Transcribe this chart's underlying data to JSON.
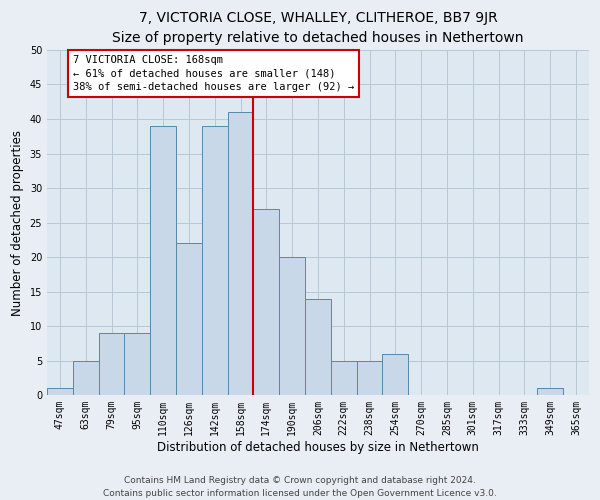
{
  "title": "7, VICTORIA CLOSE, WHALLEY, CLITHEROE, BB7 9JR",
  "subtitle": "Size of property relative to detached houses in Nethertown",
  "xlabel": "Distribution of detached houses by size in Nethertown",
  "ylabel": "Number of detached properties",
  "bar_labels": [
    "47sqm",
    "63sqm",
    "79sqm",
    "95sqm",
    "110sqm",
    "126sqm",
    "142sqm",
    "158sqm",
    "174sqm",
    "190sqm",
    "206sqm",
    "222sqm",
    "238sqm",
    "254sqm",
    "270sqm",
    "285sqm",
    "301sqm",
    "317sqm",
    "333sqm",
    "349sqm",
    "365sqm"
  ],
  "bar_values": [
    1,
    5,
    9,
    9,
    39,
    22,
    39,
    41,
    27,
    20,
    14,
    5,
    5,
    6,
    0,
    0,
    0,
    0,
    0,
    1,
    0
  ],
  "bar_color": "#c8d8e8",
  "bar_edgecolor": "#5588aa",
  "annotation_line1": "7 VICTORIA CLOSE: 168sqm",
  "annotation_line2": "← 61% of detached houses are smaller (148)",
  "annotation_line3": "38% of semi-detached houses are larger (92) →",
  "annotation_box_facecolor": "#ffffff",
  "annotation_box_edgecolor": "#cc0000",
  "vline_color": "#cc0000",
  "vline_x": 7.5,
  "ylim": [
    0,
    50
  ],
  "yticks": [
    0,
    5,
    10,
    15,
    20,
    25,
    30,
    35,
    40,
    45,
    50
  ],
  "grid_color": "#b8c8d8",
  "plot_bg_color": "#dde8f0",
  "fig_bg_color": "#e8eef4",
  "footer_line1": "Contains HM Land Registry data © Crown copyright and database right 2024.",
  "footer_line2": "Contains public sector information licensed under the Open Government Licence v3.0.",
  "title_fontsize": 10,
  "xlabel_fontsize": 8.5,
  "ylabel_fontsize": 8.5,
  "tick_fontsize": 7,
  "annotation_fontsize": 7.5,
  "footer_fontsize": 6.5
}
